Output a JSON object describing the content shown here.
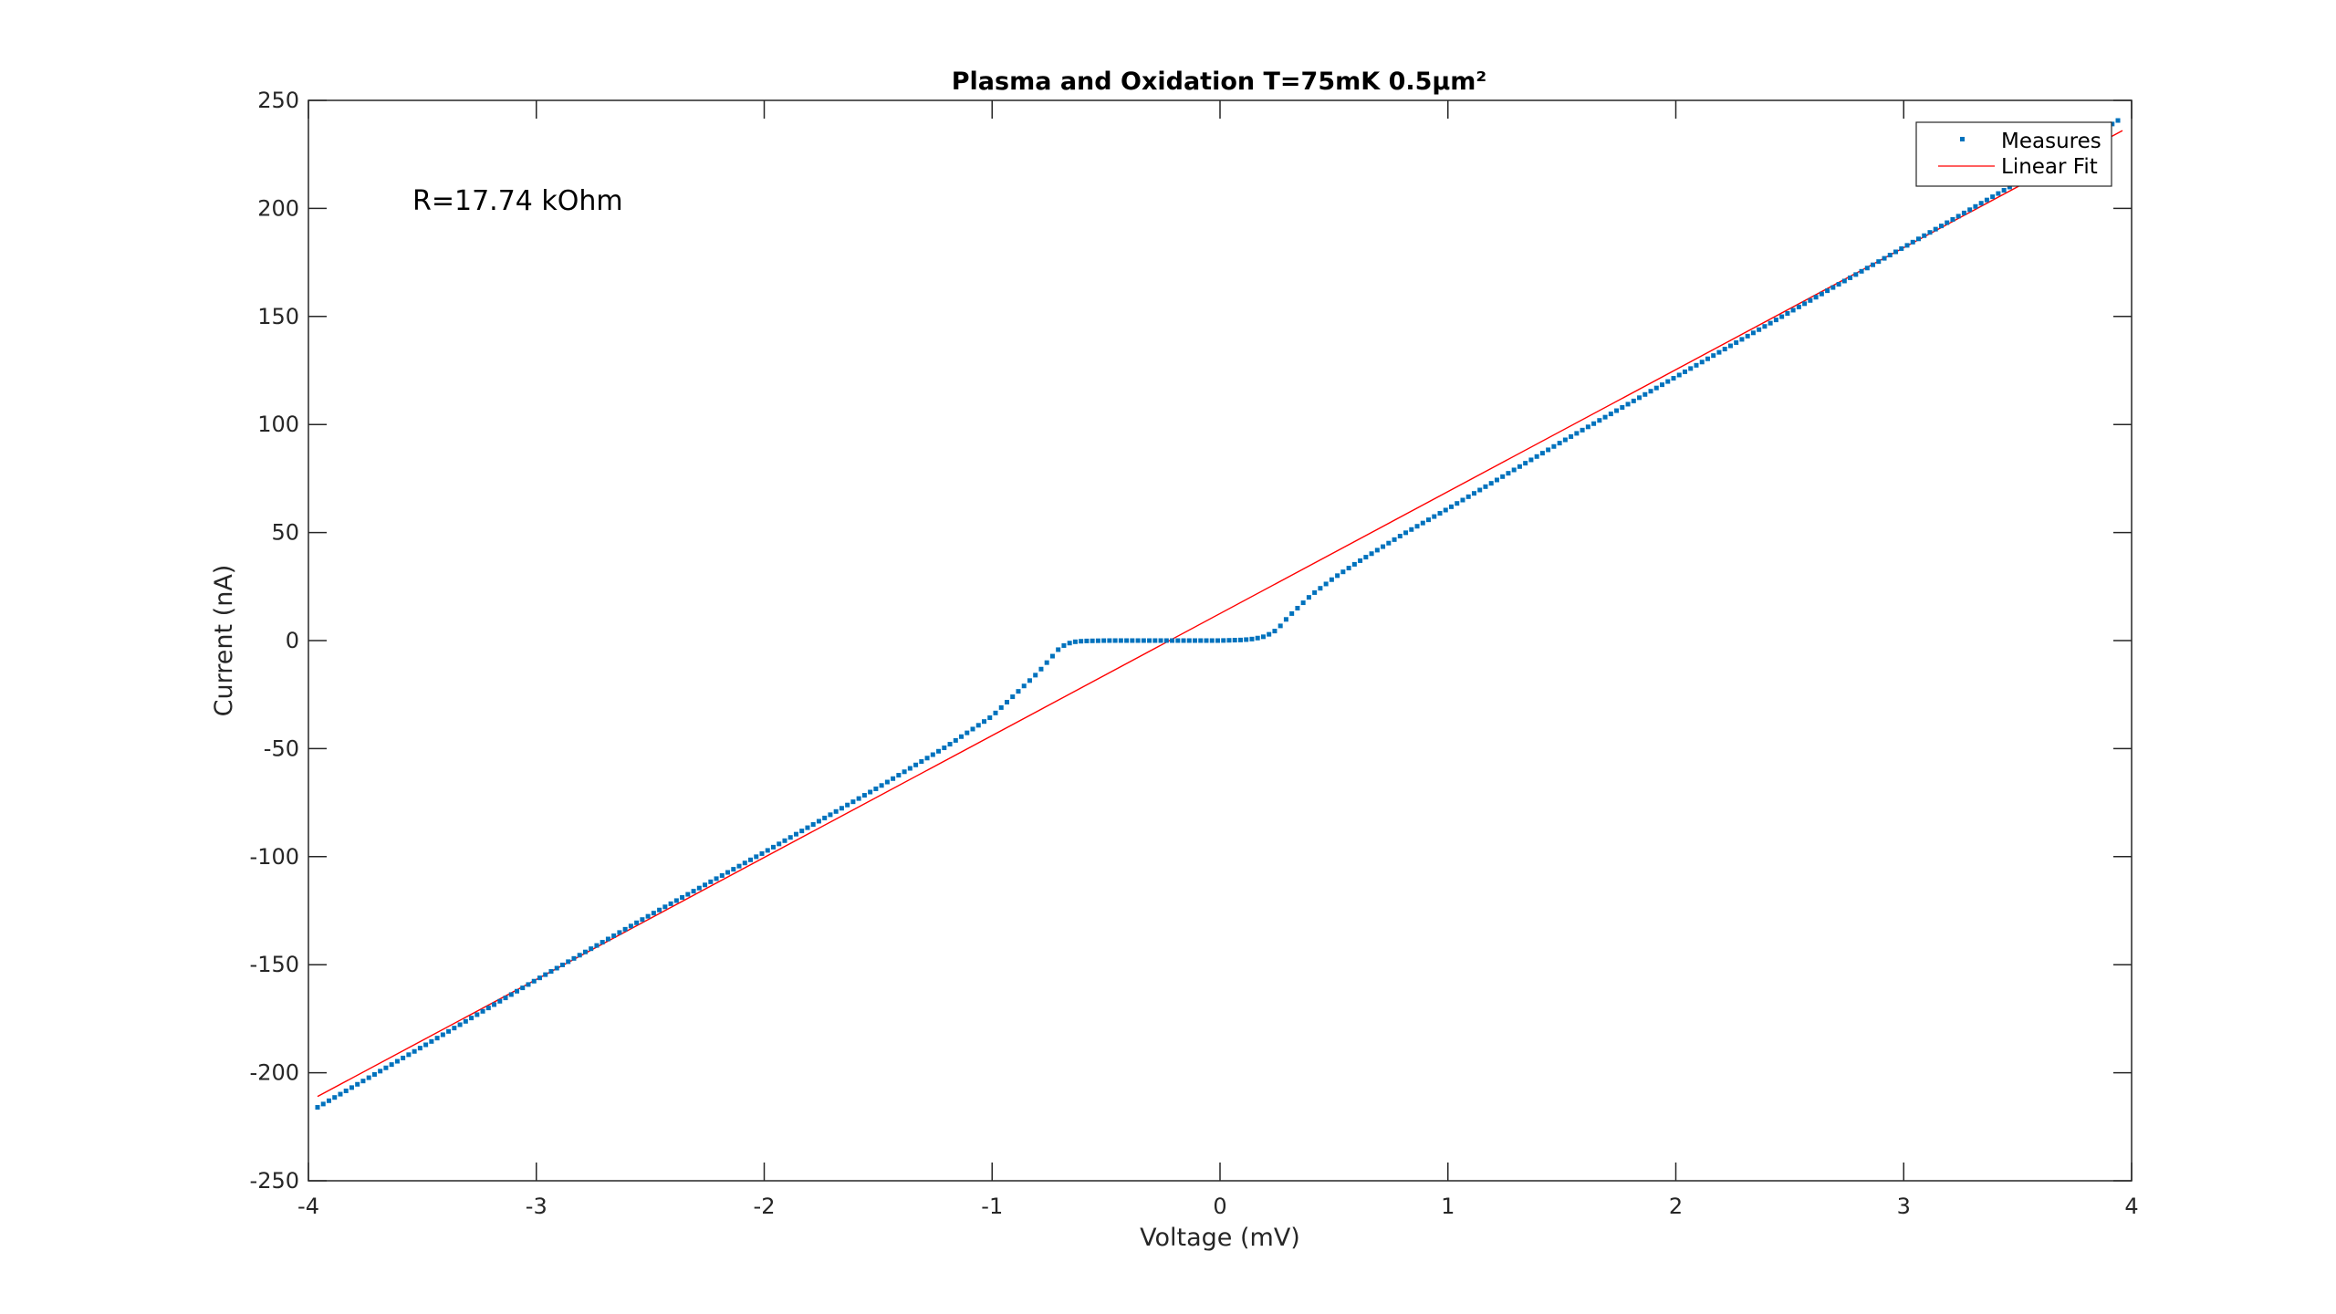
{
  "chart_data": {
    "type": "scatter",
    "title": "Plasma and Oxidation T=75mK 0.5µm²",
    "xlabel": "Voltage (mV)",
    "ylabel": "Current (nA)",
    "xlim": [
      -4,
      4
    ],
    "ylim": [
      -250,
      250
    ],
    "xticks": [
      -4,
      -3,
      -2,
      -1,
      0,
      1,
      2,
      3,
      4
    ],
    "yticks": [
      -250,
      -200,
      -150,
      -100,
      -50,
      0,
      50,
      100,
      150,
      200,
      250
    ],
    "grid": false,
    "legend_position": "top-right",
    "annotation": "R=17.74 kOhm",
    "series": [
      {
        "name": "Measures",
        "kind": "markers",
        "color": "#0072BD",
        "x": [
          -3.96,
          -3.5,
          -3.0,
          -2.5,
          -2.0,
          -1.5,
          -1.2,
          -1.0,
          -0.9,
          -0.8,
          -0.75,
          -0.7,
          -0.65,
          -0.6,
          -0.5,
          -0.4,
          -0.2,
          0.0,
          0.1,
          0.15,
          0.2,
          0.25,
          0.3,
          0.4,
          0.5,
          0.6,
          0.8,
          1.0,
          1.5,
          2.0,
          2.5,
          3.0,
          3.5,
          3.96
        ],
        "y": [
          -216,
          -188,
          -157,
          -127,
          -98,
          -68,
          -49,
          -35,
          -25,
          -15,
          -9,
          -3,
          -0.7,
          -0.2,
          0,
          0,
          0,
          0,
          0.3,
          0.8,
          2,
          5,
          11,
          21,
          29,
          36,
          49,
          61,
          92,
          122,
          152,
          182,
          212,
          242
        ]
      },
      {
        "name": "Linear Fit",
        "kind": "line",
        "color": "#FF0000",
        "x": [
          -3.96,
          3.96
        ],
        "y": [
          -211,
          236
        ]
      }
    ]
  }
}
